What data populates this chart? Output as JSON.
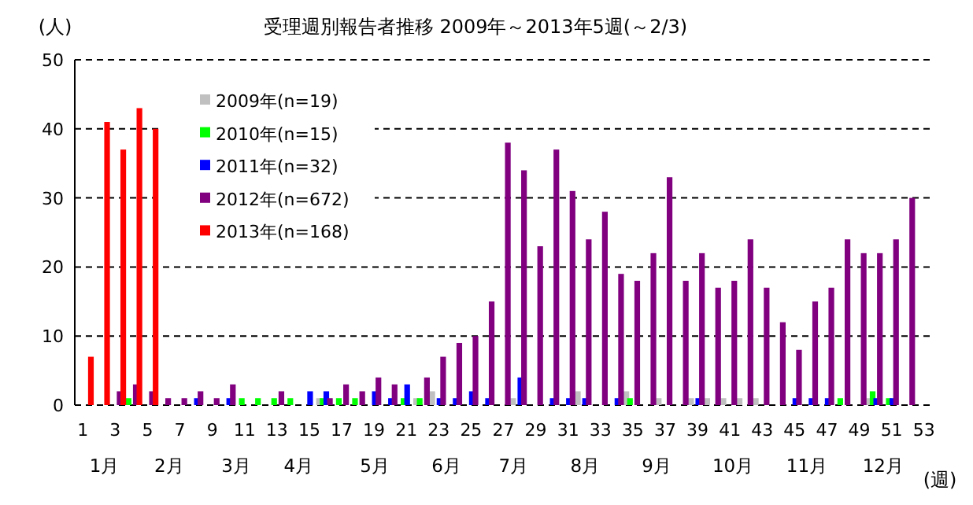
{
  "chart_data": {
    "type": "bar",
    "title": "受理週別報告者推移 2009年～2013年5週(～2/3)",
    "xlabel": "(週)",
    "ylabel": "(人)",
    "x": [
      1,
      2,
      3,
      4,
      5,
      6,
      7,
      8,
      9,
      10,
      11,
      12,
      13,
      14,
      15,
      16,
      17,
      18,
      19,
      20,
      21,
      22,
      23,
      24,
      25,
      26,
      27,
      28,
      29,
      30,
      31,
      32,
      33,
      34,
      35,
      36,
      37,
      38,
      39,
      40,
      41,
      42,
      43,
      44,
      45,
      46,
      47,
      48,
      49,
      50,
      51,
      52,
      53
    ],
    "xlim": [
      0.5,
      53.5
    ],
    "xticks": [
      1,
      3,
      5,
      7,
      9,
      11,
      13,
      15,
      17,
      19,
      21,
      23,
      25,
      27,
      29,
      31,
      33,
      35,
      37,
      39,
      41,
      43,
      45,
      47,
      49,
      51,
      53
    ],
    "x2lim": [
      "--01-01",
      "--12-31"
    ],
    "x2ticks": [
      {
        "value": "--01-14",
        "label": "1月"
      },
      {
        "value": "--02-11",
        "label": "2月"
      },
      {
        "value": "--03-12",
        "label": "3月"
      },
      {
        "value": "--04-08",
        "label": "4月"
      },
      {
        "value": "--05-11",
        "label": "5月"
      },
      {
        "value": "--06-11",
        "label": "6月"
      },
      {
        "value": "--07-10",
        "label": "7月"
      },
      {
        "value": "--08-10",
        "label": "8月"
      },
      {
        "value": "--09-10",
        "label": "9月"
      },
      {
        "value": "--10-13",
        "label": "10月"
      },
      {
        "value": "--11-14",
        "label": "11月"
      },
      {
        "value": "--12-17",
        "label": "12月"
      }
    ],
    "ylim": [
      0,
      50
    ],
    "yticks": [
      0,
      10,
      20,
      30,
      40,
      50
    ],
    "grid": "y",
    "legend": "top left",
    "series": [
      {
        "name": "2009年(n=19)",
        "color": "#c0c0c0",
        "values": [
          0,
          0,
          0,
          0,
          0,
          0,
          0,
          0,
          0,
          0,
          0,
          0,
          0,
          0,
          0,
          1,
          0,
          0,
          0,
          0,
          0,
          1,
          2,
          0,
          0,
          0,
          0,
          1,
          0,
          0,
          0,
          2,
          0,
          0,
          2,
          0,
          1,
          0,
          1,
          1,
          1,
          1,
          1,
          0,
          0,
          0,
          0,
          0,
          0,
          1,
          0,
          0,
          0
        ]
      },
      {
        "name": "2010年(n=15)",
        "color": "#00ff00",
        "values": [
          0,
          0,
          0,
          1,
          0,
          0,
          0,
          0,
          0,
          0,
          1,
          1,
          1,
          1,
          0,
          1,
          1,
          1,
          0,
          0,
          1,
          1,
          0,
          0,
          0,
          0,
          0,
          0,
          0,
          0,
          0,
          0,
          0,
          0,
          1,
          0,
          0,
          0,
          0,
          0,
          0,
          0,
          0,
          0,
          0,
          0,
          0,
          1,
          0,
          2,
          1,
          0,
          0
        ]
      },
      {
        "name": "2011年(n=32)",
        "color": "#0000ff",
        "values": [
          0,
          0,
          0,
          0,
          0,
          0,
          0,
          1,
          0,
          1,
          0,
          0,
          0,
          0,
          2,
          2,
          0,
          0,
          2,
          1,
          3,
          0,
          1,
          1,
          2,
          1,
          0,
          4,
          0,
          1,
          1,
          1,
          0,
          1,
          0,
          0,
          0,
          0,
          1,
          0,
          0,
          0,
          0,
          0,
          1,
          1,
          1,
          0,
          0,
          1,
          1,
          0,
          0
        ]
      },
      {
        "name": "2012年(n=672)",
        "color": "#800080",
        "values": [
          0,
          0,
          2,
          3,
          2,
          1,
          1,
          2,
          1,
          3,
          0,
          0,
          2,
          0,
          0,
          1,
          3,
          2,
          4,
          3,
          0,
          4,
          7,
          9,
          10,
          15,
          38,
          34,
          23,
          37,
          31,
          24,
          28,
          19,
          18,
          22,
          33,
          18,
          22,
          17,
          18,
          24,
          17,
          12,
          8,
          15,
          17,
          24,
          22,
          22,
          24,
          30,
          0
        ]
      },
      {
        "name": "2013年(n=168)",
        "color": "#ff0000",
        "values": [
          7,
          41,
          37,
          43,
          40,
          null,
          null,
          null,
          null,
          null,
          null,
          null,
          null,
          null,
          null,
          null,
          null,
          null,
          null,
          null,
          null,
          null,
          null,
          null,
          null,
          null,
          null,
          null,
          null,
          null,
          null,
          null,
          null,
          null,
          null,
          null,
          null,
          null,
          null,
          null,
          null,
          null,
          null,
          null,
          null,
          null,
          null,
          null,
          null,
          null,
          null,
          null,
          null
        ]
      }
    ]
  }
}
